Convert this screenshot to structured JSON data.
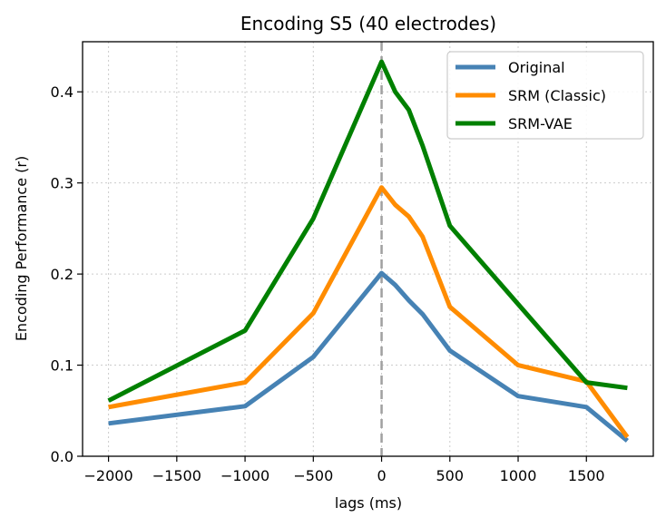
{
  "chart_data": {
    "type": "line",
    "title": "Encoding S5 (40 electrodes)",
    "xlabel": "lags (ms)",
    "ylabel": "Encoding Performance (r)",
    "xlim": [
      -2190,
      1990
    ],
    "ylim": [
      0,
      0.455
    ],
    "xticks": [
      -2000,
      -1500,
      -1000,
      -500,
      0,
      500,
      1000,
      1500
    ],
    "xtick_labels": [
      "−2000",
      "−1500",
      "−1000",
      "−500",
      "0",
      "500",
      "1000",
      "1500"
    ],
    "yticks": [
      0.0,
      0.1,
      0.2,
      0.3,
      0.4
    ],
    "ytick_labels": [
      "0.0",
      "0.1",
      "0.2",
      "0.3",
      "0.4"
    ],
    "grid": true,
    "vline": 0,
    "legend_position": "top-right",
    "series": [
      {
        "name": "Original",
        "color": "#4682b4",
        "x": [
          -2000,
          -1000,
          -500,
          0,
          100,
          200,
          300,
          500,
          1000,
          1500,
          1800
        ],
        "y": [
          0.036,
          0.055,
          0.109,
          0.201,
          0.188,
          0.171,
          0.156,
          0.116,
          0.066,
          0.054,
          0.017
        ]
      },
      {
        "name": "SRM (Classic)",
        "color": "#ff8c00",
        "x": [
          -2000,
          -1000,
          -500,
          0,
          100,
          200,
          300,
          500,
          1000,
          1500,
          1800
        ],
        "y": [
          0.054,
          0.081,
          0.157,
          0.295,
          0.276,
          0.263,
          0.241,
          0.164,
          0.1,
          0.082,
          0.021
        ]
      },
      {
        "name": "SRM-VAE",
        "color": "#008000",
        "x": [
          -2000,
          -1000,
          -500,
          0,
          100,
          200,
          300,
          500,
          1000,
          1500,
          1800
        ],
        "y": [
          0.061,
          0.138,
          0.261,
          0.433,
          0.4,
          0.38,
          0.341,
          0.253,
          0.167,
          0.081,
          0.075
        ]
      }
    ]
  }
}
